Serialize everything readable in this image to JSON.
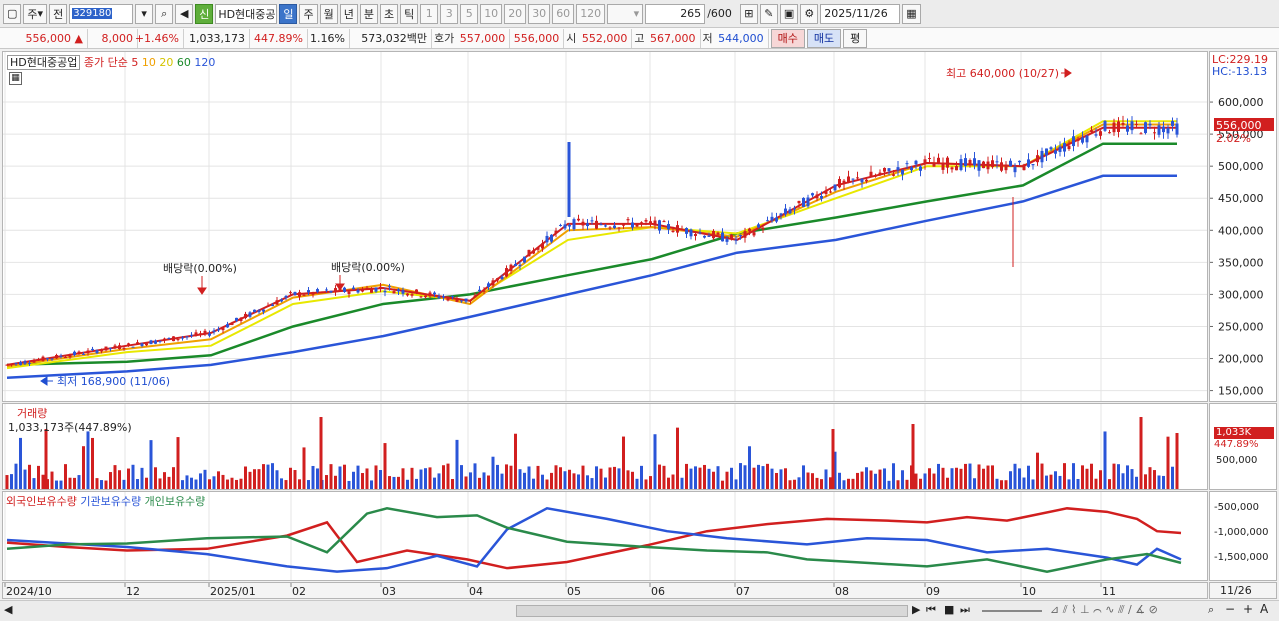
{
  "toolbar": {
    "period_type": "주",
    "prev_label": "전",
    "stock_code": "329180",
    "new_badge": "신",
    "stock_name": "HD현대중공",
    "periods": [
      "일",
      "주",
      "월",
      "년",
      "분",
      "초",
      "틱"
    ],
    "active_period": "일",
    "intervals": [
      "1",
      "3",
      "5",
      "10",
      "20",
      "30",
      "60",
      "120"
    ],
    "count": "265",
    "count_max": "/600",
    "date": "2025/11/26"
  },
  "quote": {
    "price": "556,000",
    "change_arrow": "▲",
    "change": "8,000",
    "change_pct": "+1.46%",
    "volume": "1,033,173",
    "volume_ratio": "447.89%",
    "turnover": "1.16%",
    "amount": "573,032백만",
    "bid_label": "호가",
    "ask": "557,000",
    "bid": "556,000",
    "open_label": "시",
    "open": "552,000",
    "high_label": "고",
    "high": "567,000",
    "low_label": "저",
    "low": "544,000",
    "buy_label": "매수",
    "sell_label": "매도",
    "avg_label": "평"
  },
  "price_chart": {
    "stock_tag": "HD현대중공업",
    "ma_title": "종가 단순",
    "ma_periods": [
      "5",
      "10",
      "20",
      "60",
      "120"
    ],
    "ma_colors": [
      "#d11f1f",
      "#f0a000",
      "#e8e800",
      "#1a8a2a",
      "#2a55d8"
    ],
    "lc_label": "LC:229.19",
    "hc_label": "HC:-13.13",
    "last_price_tag": "556,000",
    "last_pct_tag": "2.02%",
    "annotations": {
      "high": "최고 640,000 (10/27)",
      "low": "최저 168,900 (11/06)",
      "div1": "배당락(0.00%)",
      "div2": "배당락(0.00%)"
    },
    "y_ticks": [
      "600,000",
      "550,000",
      "500,000",
      "450,000",
      "400,000",
      "350,000",
      "300,000",
      "250,000",
      "200,000",
      "150,000"
    ]
  },
  "volume_chart": {
    "title": "거래량",
    "value_line": "1,033,173주(447.89%)",
    "tag": "1,033K",
    "tag_pct": "447.89%",
    "y_tick": "500,000"
  },
  "holdings_chart": {
    "legend": [
      "외국인보유수량",
      "기관보유수량",
      "개인보유수량"
    ],
    "colors": [
      "#d11f1f",
      "#2a55d8",
      "#2a8a4a"
    ],
    "y_ticks": [
      "-500,000",
      "-1,000,000",
      "-1,500,000"
    ]
  },
  "date_axis": {
    "labels": [
      "2024/10",
      "12",
      "2025/01",
      "02",
      "03",
      "04",
      "05",
      "06",
      "07",
      "08",
      "09",
      "10",
      "11"
    ],
    "last": "11/26"
  },
  "chart_data": [
    {
      "type": "line",
      "title": "HD현대중공업",
      "x": [
        "2024/10",
        "12",
        "2025/01",
        "02",
        "03",
        "04",
        "05",
        "06",
        "07",
        "08",
        "09",
        "10",
        "11"
      ],
      "series": [
        {
          "name": "5",
          "values": [
            190000,
            220000,
            240000,
            300000,
            310000,
            290000,
            410000,
            410000,
            385000,
            470000,
            505000,
            500000,
            560000
          ]
        },
        {
          "name": "10",
          "values": [
            188000,
            215000,
            230000,
            295000,
            315000,
            285000,
            400000,
            405000,
            390000,
            460000,
            505000,
            500000,
            565000
          ]
        },
        {
          "name": "20",
          "values": [
            185000,
            210000,
            220000,
            285000,
            305000,
            290000,
            385000,
            405000,
            395000,
            450000,
            500000,
            500000,
            570000
          ]
        },
        {
          "name": "60",
          "values": [
            190000,
            195000,
            205000,
            250000,
            285000,
            300000,
            330000,
            355000,
            395000,
            420000,
            445000,
            470000,
            535000
          ]
        },
        {
          "name": "120",
          "values": [
            170000,
            180000,
            190000,
            210000,
            235000,
            265000,
            300000,
            330000,
            365000,
            385000,
            415000,
            445000,
            485000
          ]
        }
      ],
      "ylim": [
        140000,
        650000
      ]
    }
  ]
}
